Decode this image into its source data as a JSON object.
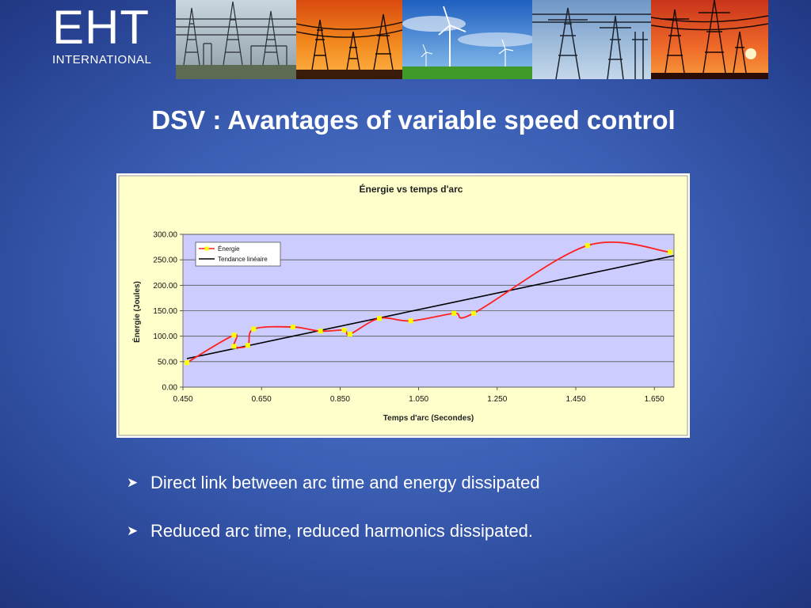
{
  "logo": {
    "main": "EHT",
    "sub": "INTERNATIONAL"
  },
  "banner": {
    "photos": [
      "substation-photo",
      "pylons-sunset-photo",
      "wind-turbines-photo",
      "towers-blue-sky-photo",
      "pylon-red-sky-photo"
    ]
  },
  "title": "DSV : Avantages of variable speed control",
  "chart_data": {
    "type": "scatter",
    "title": "Énergie vs temps d'arc",
    "xlabel": "Temps d'arc (Secondes)",
    "ylabel": "Énergie (Joules)",
    "xlim": [
      0.45,
      1.7
    ],
    "ylim": [
      0,
      300
    ],
    "xticks": [
      "0.450",
      "0.650",
      "0.850",
      "1.050",
      "1.250",
      "1.450",
      "1.650"
    ],
    "yticks": [
      "0.00",
      "50.00",
      "100.00",
      "150.00",
      "200.00",
      "250.00",
      "300.00"
    ],
    "grid": true,
    "legend": "top-left",
    "series": [
      {
        "name": "Énergie",
        "color": "#ff2020",
        "marker_color": "#ffff00",
        "x": [
          0.46,
          0.58,
          0.58,
          0.615,
          0.63,
          0.73,
          0.8,
          0.86,
          0.875,
          0.95,
          1.03,
          1.14,
          1.19,
          1.48,
          1.69
        ],
        "y": [
          48,
          102,
          80,
          82,
          114,
          118,
          110,
          112,
          104,
          135,
          130,
          145,
          145,
          278,
          265
        ]
      },
      {
        "name": "Tendance linéaire",
        "color": "#000000",
        "x": [
          0.46,
          1.7
        ],
        "y": [
          56,
          258
        ]
      }
    ]
  },
  "bullets": [
    {
      "icon": "arrow-bullet-icon",
      "text": "Direct link between arc time and energy dissipated"
    },
    {
      "icon": "arrow-bullet-icon",
      "text": "Reduced arc time, reduced harmonics dissipated."
    }
  ]
}
